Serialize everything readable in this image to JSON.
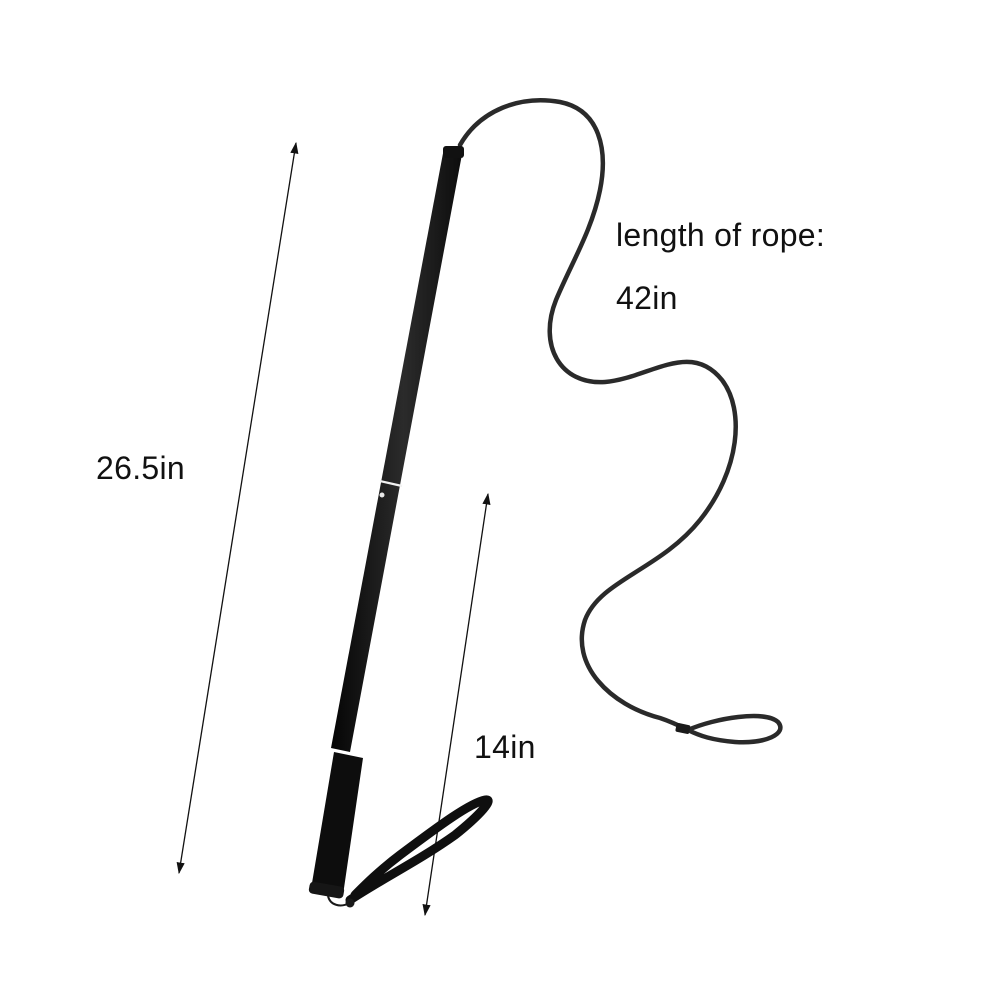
{
  "dimensions": {
    "overall_length": "26.5in",
    "handle_length": "14in",
    "rope_label": "length of rope:",
    "rope_length": "42in"
  },
  "colors": {
    "background": "#ffffff",
    "pole": "#1b1b1b",
    "rope": "#2a2a2a",
    "text": "#111111",
    "arrow": "#111111"
  },
  "parts": [
    "pole-shaft",
    "pole-joint-ring",
    "foam-grip",
    "wrist-strap",
    "rope",
    "rope-loop"
  ]
}
